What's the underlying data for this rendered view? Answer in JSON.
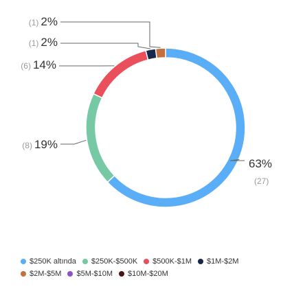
{
  "chart_data": {
    "type": "pie",
    "donut": true,
    "title": "",
    "legend_position": "bottom",
    "slices": [
      {
        "label": "$250K altında",
        "value": 63,
        "value_label": "63%",
        "count": 27,
        "count_label": "(27)",
        "color": "#5aaef8"
      },
      {
        "label": "$250K-$500K",
        "value": 19,
        "value_label": "19%",
        "count": 8,
        "count_label": "(8)",
        "color": "#76c9a4"
      },
      {
        "label": "$500K-$1M",
        "value": 14,
        "value_label": "14%",
        "count": 6,
        "count_label": "(6)",
        "color": "#ea4f5c"
      },
      {
        "label": "$1M-$2M",
        "value": 2,
        "value_label": "2%",
        "count": 1,
        "count_label": "(1)",
        "color": "#17294a"
      },
      {
        "label": "$2M-$5M",
        "value": 2,
        "value_label": "2%",
        "count": 1,
        "count_label": "(1)",
        "color": "#c2703f"
      }
    ],
    "legend": [
      [
        {
          "label": "$250K altında",
          "color": "#5aaef8"
        },
        {
          "label": "$250K-$500K",
          "color": "#76c9a4"
        },
        {
          "label": "$500K-$1M",
          "color": "#ea4f5c"
        },
        {
          "label": "$1M-$2M",
          "color": "#17294a"
        }
      ],
      [
        {
          "label": "$2M-$5M",
          "color": "#c2703f"
        },
        {
          "label": "$5M-$10M",
          "color": "#8e53c0"
        },
        {
          "label": "$10M-$20M",
          "color": "#4a1414"
        }
      ]
    ]
  }
}
